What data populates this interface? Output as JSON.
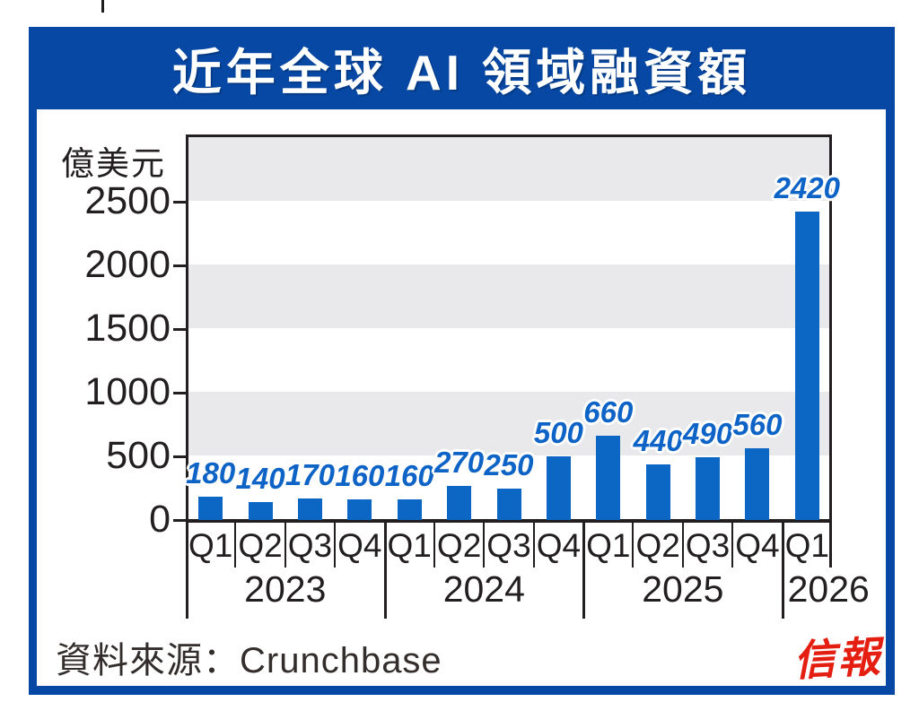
{
  "header": {
    "title": "近年全球 AI 領域融資額"
  },
  "colors": {
    "frame_blue": "#0748a4",
    "bar_blue": "#0b66c4",
    "value_label_blue": "#0e63c6",
    "band_gray": "#e9e8ea",
    "axis_dark": "#231f20",
    "logo_red": "#e41e10"
  },
  "footer": {
    "source_label": "資料來源：Crunchbase",
    "logo_text": "信報"
  },
  "chart_data": {
    "type": "bar",
    "title": "近年全球 AI 領域融資額",
    "ylabel": "億美元",
    "xlabel": "",
    "ylim": [
      0,
      3020
    ],
    "y_ticks": [
      0,
      500,
      1000,
      1500,
      2000,
      2500
    ],
    "grid": "alternating horizontal bands every 500, gray/white, no gridlines",
    "legend": "none",
    "categories": [
      "2023 Q1",
      "2023 Q2",
      "2023 Q3",
      "2023 Q4",
      "2024 Q1",
      "2024 Q2",
      "2024 Q3",
      "2024 Q4",
      "2025 Q1",
      "2025 Q2",
      "2025 Q3",
      "2025 Q4",
      "2026 Q1"
    ],
    "quarter_labels": [
      "Q1",
      "Q2",
      "Q3",
      "Q4",
      "Q1",
      "Q2",
      "Q3",
      "Q4",
      "Q1",
      "Q2",
      "Q3",
      "Q4",
      "Q1"
    ],
    "year_groups": [
      {
        "year": "2023",
        "count": 4
      },
      {
        "year": "2024",
        "count": 4
      },
      {
        "year": "2025",
        "count": 4
      },
      {
        "year": "2026",
        "count": 1
      }
    ],
    "values": [
      180,
      140,
      170,
      160,
      160,
      270,
      250,
      500,
      660,
      440,
      490,
      560,
      2420
    ],
    "bar_labels": [
      "180",
      "140",
      "170",
      "160",
      "160",
      "270",
      "250",
      "500",
      "660",
      "440",
      "490",
      "560",
      "2420"
    ]
  }
}
